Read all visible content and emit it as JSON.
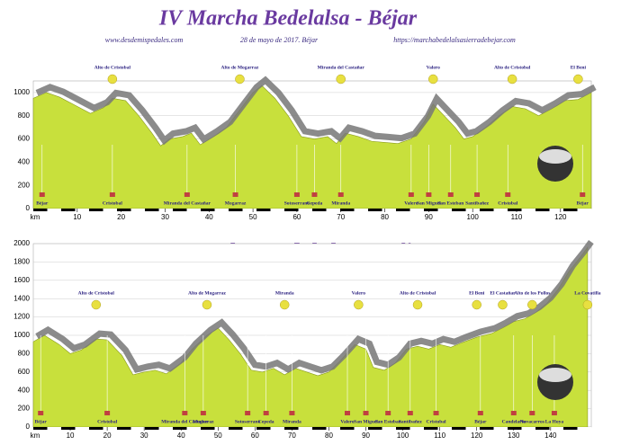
{
  "chart_data": [
    {
      "type": "area",
      "title": "IV Marcha Bedelalsa - Béjar",
      "subtitles": [
        "www.desdemispedales.com",
        "28 de mayo de 2017. Béjar",
        "https://marchabedelalsasierradebejar.com"
      ],
      "x_label": "km",
      "color": "#c8e03c",
      "x": [
        0,
        3,
        6,
        10,
        13,
        16,
        18,
        21,
        24,
        27,
        29,
        31,
        34,
        36,
        38,
        41,
        44,
        47,
        50,
        52,
        55,
        58,
        61,
        64,
        67,
        69,
        71,
        74,
        77,
        80,
        83,
        86,
        89,
        91,
        93,
        96,
        98,
        100,
        103,
        106,
        109,
        112,
        115,
        118,
        121,
        124,
        126,
        127
      ],
      "values": [
        950,
        1000,
        960,
        880,
        820,
        870,
        950,
        930,
        800,
        650,
        540,
        600,
        620,
        650,
        550,
        620,
        700,
        850,
        1000,
        1060,
        950,
        800,
        620,
        600,
        620,
        560,
        650,
        620,
        580,
        570,
        560,
        600,
        750,
        900,
        820,
        700,
        600,
        620,
        700,
        800,
        880,
        860,
        800,
        860,
        930,
        940,
        980,
        1000
      ],
      "xlim": [
        0,
        127
      ],
      "ylim": [
        0,
        1100
      ],
      "xticks": [
        10,
        20,
        30,
        40,
        50,
        60,
        70,
        80,
        90,
        100,
        110,
        120
      ],
      "yticks": [
        0,
        200,
        400,
        600,
        800,
        1000
      ],
      "grid": true,
      "peaks": [
        {
          "x": 18,
          "label": "Alto de Cristobal"
        },
        {
          "x": 47,
          "label": "Alto de Mogarraz"
        },
        {
          "x": 70,
          "label": "Miranda del Castañar"
        },
        {
          "x": 91,
          "label": "Valero"
        },
        {
          "x": 109,
          "label": "Alto de Cristobal"
        },
        {
          "x": 124,
          "label": "El Beni"
        }
      ],
      "towns": [
        {
          "x": 2,
          "label": "Béjar"
        },
        {
          "x": 18,
          "label": "Cristobal"
        },
        {
          "x": 35,
          "label": "Miranda del Castañar"
        },
        {
          "x": 46,
          "label": "Mogarraz"
        },
        {
          "x": 60,
          "label": "Sotoserrano"
        },
        {
          "x": 64,
          "label": "Cepeda"
        },
        {
          "x": 70,
          "label": "Miranda"
        },
        {
          "x": 86,
          "label": "Valero"
        },
        {
          "x": 90,
          "label": "San Miguel"
        },
        {
          "x": 95,
          "label": "San Esteban"
        },
        {
          "x": 101,
          "label": "Santibañez"
        },
        {
          "x": 108,
          "label": "Cristobal"
        },
        {
          "x": 125,
          "label": "Béjar"
        }
      ]
    },
    {
      "type": "area",
      "title": "IV Marcha Bedelalsa - Béjar",
      "subtitles": [
        "www.desdemispedales.com",
        "28 de mayo de 2017. Béjar",
        "https://marchabedelalsasierradebejar.com"
      ],
      "x_label": "km",
      "color": "#c8e03c",
      "x": [
        0,
        3,
        7,
        10,
        13,
        17,
        20,
        24,
        27,
        30,
        33,
        36,
        40,
        43,
        47,
        50,
        53,
        56,
        59,
        62,
        65,
        68,
        71,
        74,
        77,
        80,
        83,
        87,
        90,
        92,
        95,
        98,
        101,
        104,
        107,
        110,
        113,
        116,
        120,
        124,
        127,
        130,
        133,
        136,
        139,
        142,
        145,
        148,
        150
      ],
      "values": [
        930,
        1000,
        900,
        800,
        840,
        960,
        950,
        780,
        570,
        600,
        620,
        580,
        700,
        850,
        1000,
        1080,
        950,
        800,
        620,
        600,
        640,
        570,
        640,
        600,
        560,
        600,
        720,
        900,
        850,
        650,
        620,
        700,
        850,
        880,
        850,
        900,
        870,
        920,
        980,
        1020,
        1080,
        1150,
        1180,
        1250,
        1350,
        1500,
        1700,
        1850,
        1960
      ],
      "xlim": [
        0,
        151
      ],
      "ylim": [
        0,
        2000
      ],
      "xticks": [
        10,
        20,
        30,
        40,
        50,
        60,
        70,
        80,
        90,
        100,
        110,
        120,
        130,
        140
      ],
      "yticks": [
        0,
        200,
        400,
        600,
        800,
        1000,
        1200,
        1400,
        1600,
        1800,
        2000
      ],
      "grid": true,
      "peaks": [
        {
          "x": 17,
          "label": "Alto de Cristobal"
        },
        {
          "x": 47,
          "label": "Alto de Mogarraz"
        },
        {
          "x": 68,
          "label": "Miranda"
        },
        {
          "x": 88,
          "label": "Valero"
        },
        {
          "x": 104,
          "label": "Alto de Cristobal"
        },
        {
          "x": 120,
          "label": "El Beni"
        },
        {
          "x": 127,
          "label": "El Castañar"
        },
        {
          "x": 135,
          "label": "Alto de los Pollos"
        },
        {
          "x": 150,
          "label": "La Covatilla"
        }
      ],
      "towns": [
        {
          "x": 2,
          "label": "Béjar"
        },
        {
          "x": 20,
          "label": "Cristobal"
        },
        {
          "x": 41,
          "label": "Miranda del Castañar"
        },
        {
          "x": 46,
          "label": "Mogarraz"
        },
        {
          "x": 58,
          "label": "Sotoserrano"
        },
        {
          "x": 63,
          "label": "Cepeda"
        },
        {
          "x": 70,
          "label": "Miranda"
        },
        {
          "x": 85,
          "label": "Valero"
        },
        {
          "x": 90,
          "label": "San Miguel"
        },
        {
          "x": 96,
          "label": "San Esteban"
        },
        {
          "x": 102,
          "label": "Santibañez"
        },
        {
          "x": 109,
          "label": "Cristobal"
        },
        {
          "x": 121,
          "label": "Béjar"
        },
        {
          "x": 130,
          "label": "Candelario"
        },
        {
          "x": 135,
          "label": "Navacarros"
        },
        {
          "x": 141,
          "label": "La Hoya"
        }
      ]
    }
  ]
}
